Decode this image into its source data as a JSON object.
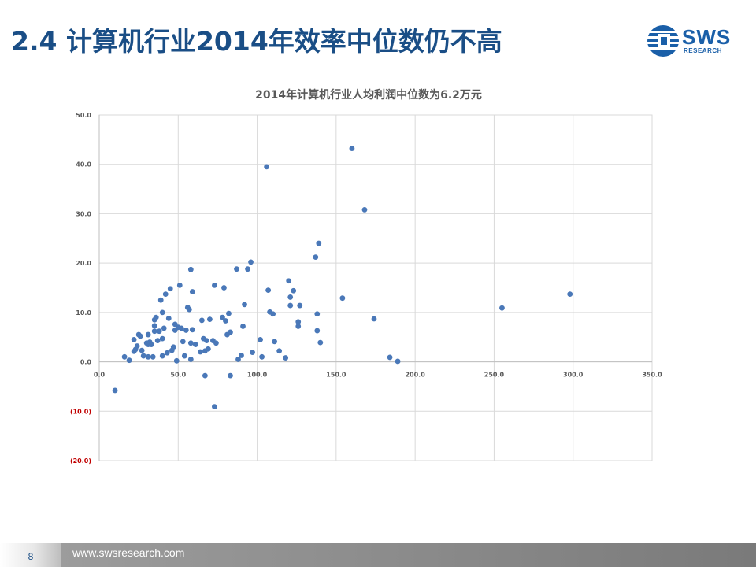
{
  "slide": {
    "title": "2.4 计算机行业2014年效率中位数仍不高",
    "page_number": "8",
    "footer_url": "www.swsresearch.com"
  },
  "logo": {
    "text": "SWS",
    "subtext": "RESEARCH",
    "icon": "sws-globe-icon"
  },
  "colors": {
    "title": "#1a4e86",
    "points": "#4a78b8",
    "negative_ticks": "#c00000",
    "axis_text": "#595959"
  },
  "chart_data": {
    "type": "scatter",
    "title": "2014年计算机行业人均利润中位数为6.2万元",
    "xlabel": "",
    "ylabel": "",
    "xlim": [
      0,
      350
    ],
    "ylim": [
      -20,
      50
    ],
    "x_ticks": [
      0,
      50,
      100,
      150,
      200,
      250,
      300,
      350
    ],
    "y_ticks": [
      -20,
      -10,
      0,
      10,
      20,
      30,
      40,
      50
    ],
    "x_tick_labels": [
      "0.0",
      "50.0",
      "100.0",
      "150.0",
      "200.0",
      "250.0",
      "300.0",
      "350.0"
    ],
    "y_tick_labels": [
      "(20.0)",
      "(10.0)",
      "0.0",
      "10.0",
      "20.0",
      "30.0",
      "40.0",
      "50.0"
    ],
    "grid": true,
    "points": [
      [
        10,
        -5.8
      ],
      [
        16,
        1
      ],
      [
        19,
        0.3
      ],
      [
        22,
        4.5
      ],
      [
        22,
        2.1
      ],
      [
        23,
        2.5
      ],
      [
        24,
        3.2
      ],
      [
        25,
        5.5
      ],
      [
        26,
        5.2
      ],
      [
        27,
        2.3
      ],
      [
        28,
        1.2
      ],
      [
        30,
        3.8
      ],
      [
        31,
        3.5
      ],
      [
        31,
        5.5
      ],
      [
        31,
        1.0
      ],
      [
        32,
        4.0
      ],
      [
        33,
        3.5
      ],
      [
        34,
        1.0
      ],
      [
        35,
        6.2
      ],
      [
        35,
        7.3
      ],
      [
        35,
        8.5
      ],
      [
        36,
        9.0
      ],
      [
        37,
        4.3
      ],
      [
        38,
        6.2
      ],
      [
        39,
        12.5
      ],
      [
        40,
        4.7
      ],
      [
        40,
        10.0
      ],
      [
        40,
        1.2
      ],
      [
        41,
        6.8
      ],
      [
        42,
        13.7
      ],
      [
        43,
        1.8
      ],
      [
        44,
        8.8
      ],
      [
        45,
        14.8
      ],
      [
        46,
        2.3
      ],
      [
        47,
        3.0
      ],
      [
        48,
        6.4
      ],
      [
        48,
        7.6
      ],
      [
        49,
        0.2
      ],
      [
        50,
        7.0
      ],
      [
        51,
        15.5
      ],
      [
        52,
        6.8
      ],
      [
        53,
        4.1
      ],
      [
        54,
        1.2
      ],
      [
        55,
        6.4
      ],
      [
        56,
        11.0
      ],
      [
        57,
        10.6
      ],
      [
        58,
        3.8
      ],
      [
        58,
        0.5
      ],
      [
        58,
        18.7
      ],
      [
        59,
        6.5
      ],
      [
        59,
        14.2
      ],
      [
        61,
        3.5
      ],
      [
        64,
        2.0
      ],
      [
        65,
        8.4
      ],
      [
        66,
        4.7
      ],
      [
        67,
        2.2
      ],
      [
        67,
        -2.8
      ],
      [
        68,
        4.3
      ],
      [
        69,
        2.6
      ],
      [
        70,
        8.6
      ],
      [
        72,
        4.3
      ],
      [
        73,
        15.5
      ],
      [
        73,
        -9.1
      ],
      [
        74,
        3.8
      ],
      [
        78,
        9.0
      ],
      [
        79,
        15.0
      ],
      [
        80,
        8.3
      ],
      [
        81,
        5.5
      ],
      [
        82,
        9.8
      ],
      [
        83,
        6.0
      ],
      [
        83,
        -2.8
      ],
      [
        87,
        18.8
      ],
      [
        88,
        0.5
      ],
      [
        90,
        1.3
      ],
      [
        91,
        7.2
      ],
      [
        92,
        11.6
      ],
      [
        94,
        18.8
      ],
      [
        96,
        20.2
      ],
      [
        97,
        1.9
      ],
      [
        102,
        4.5
      ],
      [
        103,
        1.0
      ],
      [
        106,
        39.5
      ],
      [
        107,
        14.5
      ],
      [
        108,
        10.1
      ],
      [
        110,
        9.7
      ],
      [
        111,
        4.1
      ],
      [
        114,
        2.2
      ],
      [
        118,
        0.8
      ],
      [
        120,
        16.4
      ],
      [
        121,
        11.4
      ],
      [
        121,
        13.1
      ],
      [
        123,
        14.4
      ],
      [
        126,
        7.2
      ],
      [
        126,
        8.1
      ],
      [
        127,
        11.4
      ],
      [
        137,
        21.2
      ],
      [
        138,
        9.7
      ],
      [
        138,
        6.3
      ],
      [
        139,
        24.0
      ],
      [
        140,
        3.9
      ],
      [
        154,
        12.9
      ],
      [
        160,
        43.2
      ],
      [
        168,
        30.8
      ],
      [
        174,
        8.7
      ],
      [
        184,
        0.9
      ],
      [
        189,
        0.1
      ],
      [
        255,
        10.9
      ],
      [
        298,
        13.7
      ]
    ]
  }
}
